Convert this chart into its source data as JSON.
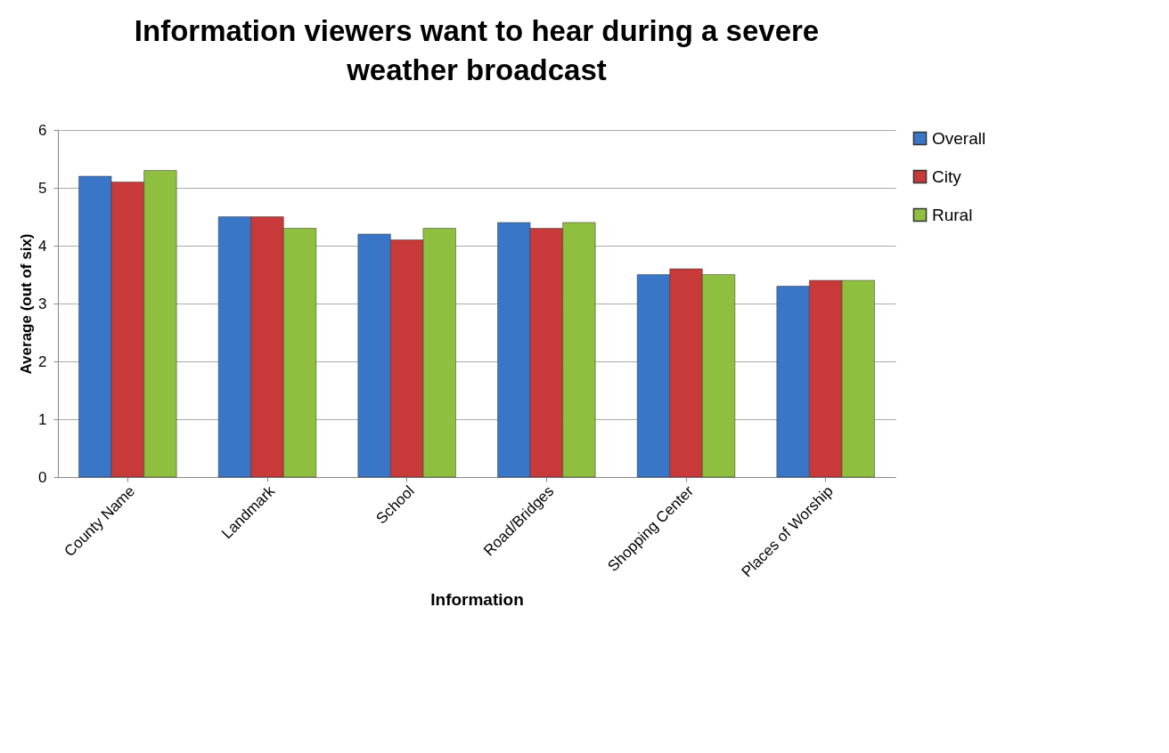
{
  "chart_data": {
    "type": "bar",
    "title": "Information viewers want to hear during a severe weather broadcast",
    "xlabel": "Information",
    "ylabel": "Average (out of six)",
    "categories": [
      "County Name",
      "Landmark",
      "School",
      "Road/Bridges",
      "Shopping Center",
      "Places of Worship"
    ],
    "series": [
      {
        "name": "Overall",
        "color": "#3a76c8",
        "values": [
          5.2,
          4.5,
          4.2,
          4.4,
          3.5,
          3.3
        ]
      },
      {
        "name": "City",
        "color": "#c83a3a",
        "values": [
          5.1,
          4.5,
          4.1,
          4.3,
          3.6,
          3.4
        ]
      },
      {
        "name": "Rural",
        "color": "#8fbf3f",
        "values": [
          5.3,
          4.3,
          4.3,
          4.4,
          3.5,
          3.4
        ]
      }
    ],
    "ylim": [
      0,
      6
    ],
    "yticks": [
      0,
      1,
      2,
      3,
      4,
      5,
      6
    ],
    "grid": "y",
    "legend": "right"
  }
}
